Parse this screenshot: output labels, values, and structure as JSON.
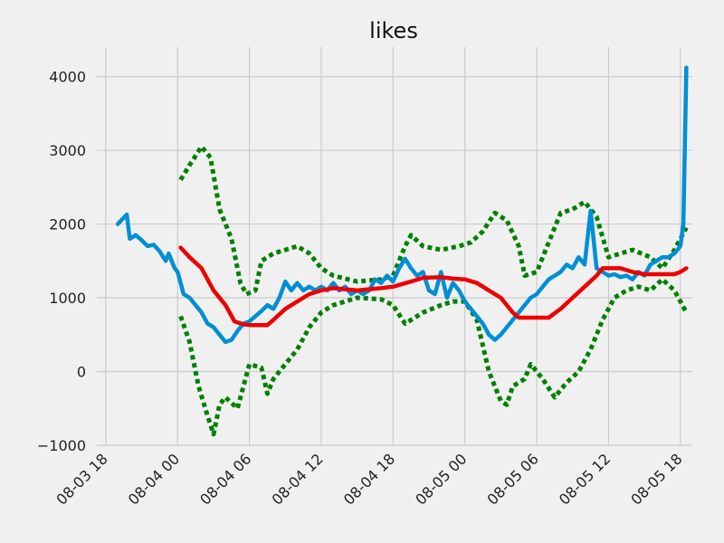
{
  "chart_data": {
    "type": "line",
    "title": "likes",
    "xlabel": "",
    "ylabel": "",
    "x_axis": {
      "type": "datetime",
      "range": [
        "2023-08-03 17:15",
        "2023-08-05 19:00"
      ],
      "ticks": [
        "2023-08-03 18:00",
        "2023-08-04 00:00",
        "2023-08-04 06:00",
        "2023-08-04 12:00",
        "2023-08-04 18:00",
        "2023-08-05 00:00",
        "2023-08-05 06:00",
        "2023-08-05 12:00",
        "2023-08-05 18:00"
      ],
      "tick_labels": [
        "08-03 18",
        "08-04 00",
        "08-04 06",
        "08-04 12",
        "08-04 18",
        "08-05 00",
        "08-05 06",
        "08-05 12",
        "08-05 18"
      ]
    },
    "y_axis": {
      "range": [
        -1000,
        4400
      ],
      "ticks": [
        -1000,
        0,
        1000,
        2000,
        3000,
        4000
      ],
      "tick_labels": [
        "−1000",
        "0",
        "1000",
        "2000",
        "3000",
        "4000"
      ]
    },
    "grid": true,
    "series": [
      {
        "role": "observed",
        "color": "#008fd5",
        "style": "solid",
        "points": [
          [
            "2023-08-03 19:00",
            2000
          ],
          [
            "2023-08-03 19:45",
            2130
          ],
          [
            "2023-08-03 20:00",
            1800
          ],
          [
            "2023-08-03 20:30",
            1850
          ],
          [
            "2023-08-03 21:00",
            1780
          ],
          [
            "2023-08-03 21:30",
            1700
          ],
          [
            "2023-08-03 22:00",
            1720
          ],
          [
            "2023-08-03 22:30",
            1630
          ],
          [
            "2023-08-03 23:00",
            1500
          ],
          [
            "2023-08-03 23:15",
            1600
          ],
          [
            "2023-08-03 23:45",
            1400
          ],
          [
            "2023-08-04 00:00",
            1350
          ],
          [
            "2023-08-04 00:30",
            1050
          ],
          [
            "2023-08-04 01:00",
            1000
          ],
          [
            "2023-08-04 01:30",
            900
          ],
          [
            "2023-08-04 02:00",
            800
          ],
          [
            "2023-08-04 02:30",
            650
          ],
          [
            "2023-08-04 03:00",
            600
          ],
          [
            "2023-08-04 03:30",
            500
          ],
          [
            "2023-08-04 04:00",
            400
          ],
          [
            "2023-08-04 04:30",
            430
          ],
          [
            "2023-08-04 05:00",
            550
          ],
          [
            "2023-08-04 05:30",
            650
          ],
          [
            "2023-08-04 06:00",
            680
          ],
          [
            "2023-08-04 06:30",
            750
          ],
          [
            "2023-08-04 07:00",
            820
          ],
          [
            "2023-08-04 07:30",
            900
          ],
          [
            "2023-08-04 08:00",
            850
          ],
          [
            "2023-08-04 08:30",
            1000
          ],
          [
            "2023-08-04 09:00",
            1220
          ],
          [
            "2023-08-04 09:30",
            1100
          ],
          [
            "2023-08-04 10:00",
            1200
          ],
          [
            "2023-08-04 10:30",
            1100
          ],
          [
            "2023-08-04 11:00",
            1150
          ],
          [
            "2023-08-04 11:30",
            1100
          ],
          [
            "2023-08-04 12:00",
            1150
          ],
          [
            "2023-08-04 12:30",
            1100
          ],
          [
            "2023-08-04 13:00",
            1200
          ],
          [
            "2023-08-04 13:30",
            1100
          ],
          [
            "2023-08-04 14:00",
            1150
          ],
          [
            "2023-08-04 14:30",
            1050
          ],
          [
            "2023-08-04 15:00",
            1100
          ],
          [
            "2023-08-04 15:30",
            1050
          ],
          [
            "2023-08-04 16:00",
            1100
          ],
          [
            "2023-08-04 16:30",
            1250
          ],
          [
            "2023-08-04 17:00",
            1200
          ],
          [
            "2023-08-04 17:30",
            1300
          ],
          [
            "2023-08-04 18:00",
            1220
          ],
          [
            "2023-08-04 18:30",
            1400
          ],
          [
            "2023-08-04 19:00",
            1530
          ],
          [
            "2023-08-04 19:30",
            1400
          ],
          [
            "2023-08-04 20:00",
            1300
          ],
          [
            "2023-08-04 20:30",
            1350
          ],
          [
            "2023-08-04 21:00",
            1100
          ],
          [
            "2023-08-04 21:30",
            1050
          ],
          [
            "2023-08-04 22:00",
            1350
          ],
          [
            "2023-08-04 22:30",
            1000
          ],
          [
            "2023-08-04 23:00",
            1200
          ],
          [
            "2023-08-04 23:30",
            1100
          ],
          [
            "2023-08-05 00:00",
            950
          ],
          [
            "2023-08-05 00:30",
            850
          ],
          [
            "2023-08-05 01:00",
            750
          ],
          [
            "2023-08-05 01:30",
            650
          ],
          [
            "2023-08-05 02:00",
            500
          ],
          [
            "2023-08-05 02:30",
            430
          ],
          [
            "2023-08-05 03:00",
            500
          ],
          [
            "2023-08-05 03:30",
            600
          ],
          [
            "2023-08-05 04:00",
            700
          ],
          [
            "2023-08-05 04:30",
            800
          ],
          [
            "2023-08-05 05:00",
            900
          ],
          [
            "2023-08-05 05:30",
            1000
          ],
          [
            "2023-08-05 06:00",
            1050
          ],
          [
            "2023-08-05 06:30",
            1150
          ],
          [
            "2023-08-05 07:00",
            1250
          ],
          [
            "2023-08-05 07:30",
            1300
          ],
          [
            "2023-08-05 08:00",
            1350
          ],
          [
            "2023-08-05 08:30",
            1450
          ],
          [
            "2023-08-05 09:00",
            1400
          ],
          [
            "2023-08-05 09:30",
            1550
          ],
          [
            "2023-08-05 10:00",
            1450
          ],
          [
            "2023-08-05 10:30",
            2180
          ],
          [
            "2023-08-05 11:00",
            1400
          ],
          [
            "2023-08-05 11:30",
            1350
          ],
          [
            "2023-08-05 12:00",
            1300
          ],
          [
            "2023-08-05 12:30",
            1320
          ],
          [
            "2023-08-05 13:00",
            1280
          ],
          [
            "2023-08-05 13:30",
            1300
          ],
          [
            "2023-08-05 14:00",
            1250
          ],
          [
            "2023-08-05 14:30",
            1350
          ],
          [
            "2023-08-05 15:00",
            1300
          ],
          [
            "2023-08-05 15:30",
            1450
          ],
          [
            "2023-08-05 16:00",
            1500
          ],
          [
            "2023-08-05 16:30",
            1550
          ],
          [
            "2023-08-05 17:00",
            1550
          ],
          [
            "2023-08-05 17:30",
            1600
          ],
          [
            "2023-08-05 18:00",
            1700
          ],
          [
            "2023-08-05 18:15",
            2000
          ],
          [
            "2023-08-05 18:30",
            4120
          ]
        ]
      },
      {
        "role": "moving-average",
        "color": "#ee0000",
        "style": "solid",
        "points": [
          [
            "2023-08-04 00:15",
            1680
          ],
          [
            "2023-08-04 01:00",
            1550
          ],
          [
            "2023-08-04 02:00",
            1400
          ],
          [
            "2023-08-04 03:00",
            1100
          ],
          [
            "2023-08-04 04:00",
            900
          ],
          [
            "2023-08-04 04:45",
            680
          ],
          [
            "2023-08-04 05:30",
            640
          ],
          [
            "2023-08-04 06:00",
            630
          ],
          [
            "2023-08-04 07:30",
            630
          ],
          [
            "2023-08-04 08:00",
            700
          ],
          [
            "2023-08-04 09:00",
            850
          ],
          [
            "2023-08-04 10:00",
            950
          ],
          [
            "2023-08-04 11:00",
            1050
          ],
          [
            "2023-08-04 12:00",
            1100
          ],
          [
            "2023-08-04 13:00",
            1130
          ],
          [
            "2023-08-04 15:00",
            1100
          ],
          [
            "2023-08-04 17:00",
            1130
          ],
          [
            "2023-08-04 18:00",
            1150
          ],
          [
            "2023-08-04 19:30",
            1220
          ],
          [
            "2023-08-04 20:30",
            1270
          ],
          [
            "2023-08-04 22:00",
            1280
          ],
          [
            "2023-08-04 23:00",
            1260
          ],
          [
            "2023-08-05 00:00",
            1250
          ],
          [
            "2023-08-05 01:00",
            1200
          ],
          [
            "2023-08-05 02:00",
            1100
          ],
          [
            "2023-08-05 03:00",
            1000
          ],
          [
            "2023-08-05 04:00",
            800
          ],
          [
            "2023-08-05 04:30",
            730
          ],
          [
            "2023-08-05 07:00",
            730
          ],
          [
            "2023-08-05 08:00",
            850
          ],
          [
            "2023-08-05 09:00",
            1000
          ],
          [
            "2023-08-05 10:00",
            1150
          ],
          [
            "2023-08-05 11:00",
            1300
          ],
          [
            "2023-08-05 11:30",
            1400
          ],
          [
            "2023-08-05 13:00",
            1400
          ],
          [
            "2023-08-05 14:00",
            1350
          ],
          [
            "2023-08-05 15:00",
            1320
          ],
          [
            "2023-08-05 17:30",
            1320
          ],
          [
            "2023-08-05 18:00",
            1350
          ],
          [
            "2023-08-05 18:30",
            1400
          ]
        ]
      },
      {
        "role": "upper-band",
        "color": "#008000",
        "style": "dotted",
        "points": [
          [
            "2023-08-04 00:15",
            2600
          ],
          [
            "2023-08-04 01:00",
            2800
          ],
          [
            "2023-08-04 02:00",
            3050
          ],
          [
            "2023-08-04 02:45",
            2900
          ],
          [
            "2023-08-04 03:30",
            2200
          ],
          [
            "2023-08-04 04:30",
            1800
          ],
          [
            "2023-08-04 05:15",
            1200
          ],
          [
            "2023-08-04 05:45",
            1050
          ],
          [
            "2023-08-04 06:30",
            1100
          ],
          [
            "2023-08-04 07:00",
            1500
          ],
          [
            "2023-08-04 08:00",
            1600
          ],
          [
            "2023-08-04 09:00",
            1650
          ],
          [
            "2023-08-04 10:00",
            1700
          ],
          [
            "2023-08-04 11:00",
            1600
          ],
          [
            "2023-08-04 12:00",
            1400
          ],
          [
            "2023-08-04 13:00",
            1300
          ],
          [
            "2023-08-04 15:00",
            1220
          ],
          [
            "2023-08-04 17:00",
            1250
          ],
          [
            "2023-08-04 18:00",
            1300
          ],
          [
            "2023-08-04 19:00",
            1700
          ],
          [
            "2023-08-04 19:30",
            1850
          ],
          [
            "2023-08-04 20:30",
            1700
          ],
          [
            "2023-08-04 22:00",
            1650
          ],
          [
            "2023-08-04 23:30",
            1700
          ],
          [
            "2023-08-05 00:30",
            1750
          ],
          [
            "2023-08-05 01:30",
            1900
          ],
          [
            "2023-08-05 02:30",
            2150
          ],
          [
            "2023-08-05 03:30",
            2050
          ],
          [
            "2023-08-05 04:30",
            1700
          ],
          [
            "2023-08-05 05:00",
            1300
          ],
          [
            "2023-08-05 06:00",
            1350
          ],
          [
            "2023-08-05 07:00",
            1750
          ],
          [
            "2023-08-05 08:00",
            2150
          ],
          [
            "2023-08-05 09:00",
            2200
          ],
          [
            "2023-08-05 10:00",
            2300
          ],
          [
            "2023-08-05 11:00",
            2100
          ],
          [
            "2023-08-05 12:00",
            1550
          ],
          [
            "2023-08-05 13:00",
            1600
          ],
          [
            "2023-08-05 14:00",
            1650
          ],
          [
            "2023-08-05 15:30",
            1550
          ],
          [
            "2023-08-05 16:30",
            1400
          ],
          [
            "2023-08-05 17:30",
            1650
          ],
          [
            "2023-08-05 18:30",
            1950
          ]
        ]
      },
      {
        "role": "lower-band",
        "color": "#008000",
        "style": "dotted",
        "points": [
          [
            "2023-08-04 00:15",
            750
          ],
          [
            "2023-08-04 01:00",
            400
          ],
          [
            "2023-08-04 01:45",
            -200
          ],
          [
            "2023-08-04 02:30",
            -600
          ],
          [
            "2023-08-04 03:00",
            -850
          ],
          [
            "2023-08-04 03:30",
            -450
          ],
          [
            "2023-08-04 04:00",
            -350
          ],
          [
            "2023-08-04 05:00",
            -500
          ],
          [
            "2023-08-04 06:00",
            100
          ],
          [
            "2023-08-04 07:00",
            50
          ],
          [
            "2023-08-04 07:30",
            -300
          ],
          [
            "2023-08-04 08:00",
            -100
          ],
          [
            "2023-08-04 09:00",
            100
          ],
          [
            "2023-08-04 10:00",
            300
          ],
          [
            "2023-08-04 11:00",
            600
          ],
          [
            "2023-08-04 12:00",
            800
          ],
          [
            "2023-08-04 13:00",
            900
          ],
          [
            "2023-08-04 15:00",
            1000
          ],
          [
            "2023-08-04 17:00",
            980
          ],
          [
            "2023-08-04 18:00",
            900
          ],
          [
            "2023-08-04 19:00",
            650
          ],
          [
            "2023-08-04 20:30",
            800
          ],
          [
            "2023-08-04 22:00",
            900
          ],
          [
            "2023-08-04 23:00",
            950
          ],
          [
            "2023-08-05 00:00",
            950
          ],
          [
            "2023-08-05 01:00",
            700
          ],
          [
            "2023-08-05 02:00",
            0
          ],
          [
            "2023-08-05 03:00",
            -400
          ],
          [
            "2023-08-05 03:30",
            -450
          ],
          [
            "2023-08-05 04:00",
            -200
          ],
          [
            "2023-08-05 05:00",
            -100
          ],
          [
            "2023-08-05 05:30",
            100
          ],
          [
            "2023-08-05 06:30",
            -100
          ],
          [
            "2023-08-05 07:30",
            -350
          ],
          [
            "2023-08-05 08:30",
            -150
          ],
          [
            "2023-08-05 09:30",
            0
          ],
          [
            "2023-08-05 10:30",
            300
          ],
          [
            "2023-08-05 11:30",
            700
          ],
          [
            "2023-08-05 12:30",
            1000
          ],
          [
            "2023-08-05 13:30",
            1100
          ],
          [
            "2023-08-05 14:30",
            1150
          ],
          [
            "2023-08-05 15:30",
            1100
          ],
          [
            "2023-08-05 16:30",
            1250
          ],
          [
            "2023-08-05 17:30",
            1100
          ],
          [
            "2023-08-05 18:30",
            800
          ]
        ]
      }
    ]
  }
}
